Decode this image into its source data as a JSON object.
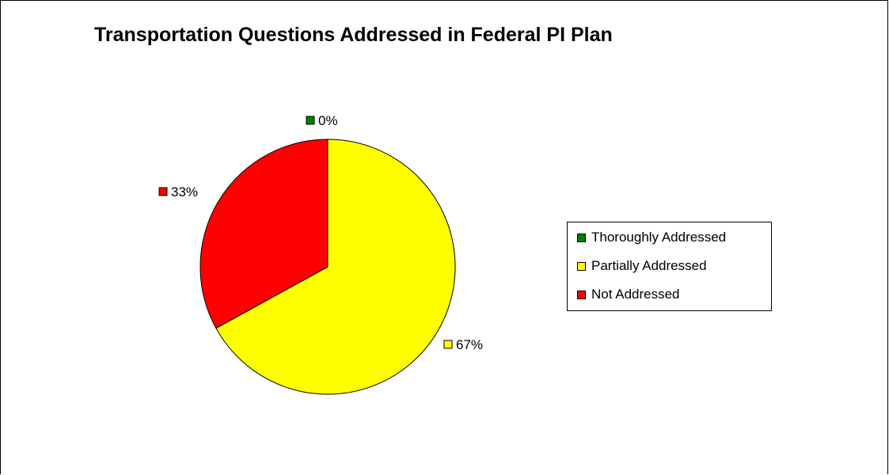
{
  "chart_data": {
    "type": "pie",
    "title": "Transportation Questions Addressed in Federal PI Plan",
    "slices": [
      {
        "label": "Thoroughly Addressed",
        "value": 0,
        "value_label": "0%",
        "color": "#008000"
      },
      {
        "label": "Partially Addressed",
        "value": 67,
        "value_label": "67%",
        "color": "#FFFF00"
      },
      {
        "label": "Not Addressed",
        "value": 33,
        "value_label": "33%",
        "color": "#FF0000"
      }
    ],
    "legend": {
      "placement": "right",
      "entries": [
        "Thoroughly Addressed",
        "Partially Addressed",
        "Not Addressed"
      ]
    }
  }
}
